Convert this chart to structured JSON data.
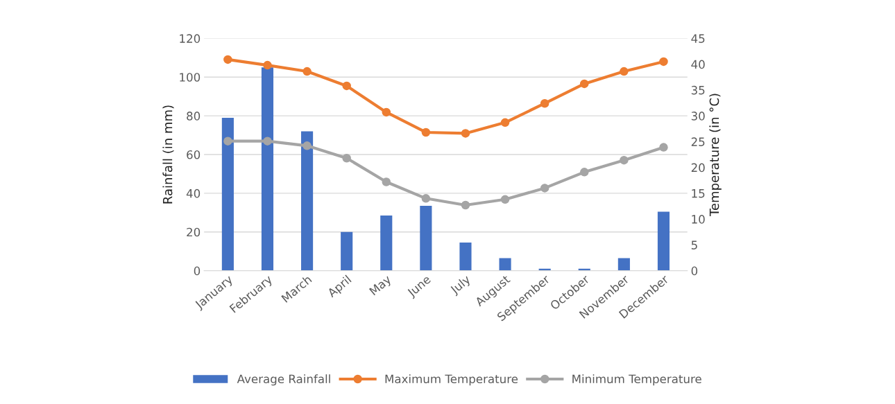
{
  "chart_data": {
    "type": "bar",
    "categories": [
      "January",
      "February",
      "March",
      "April",
      "May",
      "June",
      "July",
      "August",
      "September",
      "October",
      "November",
      "December"
    ],
    "series": [
      {
        "name": "Average Rainfall",
        "color": "#4472c4",
        "values": [
          79,
          105,
          72,
          20,
          28.5,
          33.5,
          14.5,
          6.5,
          1,
          1,
          6.5,
          30.5
        ]
      },
      {
        "name": "Maximum Temperature",
        "type": "line",
        "axis": "y2",
        "color": "#ed7d31",
        "values": [
          40.9,
          39.8,
          38.6,
          35.8,
          30.7,
          26.8,
          26.6,
          28.7,
          32.4,
          36.2,
          38.6,
          40.5
        ]
      },
      {
        "name": "Minimum Temperature",
        "type": "line",
        "axis": "y2",
        "color": "#a5a5a5",
        "values": [
          25.1,
          25.1,
          24.2,
          21.8,
          17.2,
          14,
          12.7,
          13.8,
          16,
          19.1,
          21.4,
          23.9
        ]
      }
    ],
    "ylabel": "Rainfall (in mm)",
    "y2label": "Temperature (in °C)",
    "ylim": [
      0,
      120
    ],
    "yticks": [
      0,
      20,
      40,
      60,
      80,
      100,
      120
    ],
    "y2lim": [
      0,
      45
    ],
    "y2ticks": [
      0,
      5,
      10,
      15,
      20,
      25,
      30,
      35,
      40,
      45
    ],
    "grid": "y",
    "legend": "bottom",
    "marker": "circle",
    "line_style": "solid"
  }
}
